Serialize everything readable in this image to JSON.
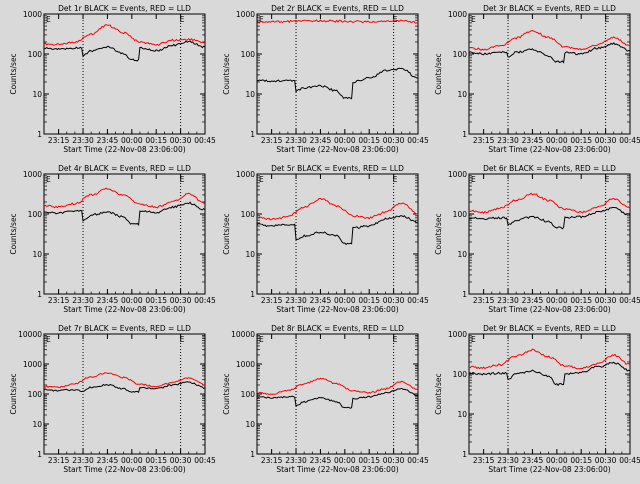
{
  "chart_data": [
    {
      "type": "line",
      "title": "Det 1r BLACK = Events, RED = LLD",
      "xlabel": "Start Time (22-Nov-08 23:06:00)",
      "ylabel": "Counts/sec",
      "yscale": "log",
      "ylim": [
        1,
        1000
      ],
      "y_ticks": [
        "1",
        "10",
        "100",
        "1000"
      ],
      "x_ticks": [
        "23:15",
        "23:30",
        "23:45",
        "00:00",
        "00:15",
        "00:30",
        "00:45"
      ],
      "xlim": [
        "23:06",
        "00:45"
      ],
      "markers": {
        "dotted_lines": [
          "23:30",
          "00:30"
        ],
        "E_labels": [
          "23:06",
          "00:30"
        ]
      },
      "series": [
        {
          "color": "#ff0000",
          "x": [
            "23:06",
            "23:15",
            "23:25",
            "23:35",
            "23:45",
            "23:55",
            "00:05",
            "00:15",
            "00:25",
            "00:35",
            "00:45"
          ],
          "values": [
            180,
            170,
            200,
            320,
            520,
            340,
            200,
            170,
            220,
            230,
            190
          ]
        },
        {
          "color": "#000000",
          "x": [
            "23:06",
            "23:15",
            "23:25",
            "23:30",
            "23:35",
            "23:45",
            "23:55",
            "00:00",
            "00:05",
            "00:15",
            "00:25",
            "00:35",
            "00:45"
          ],
          "values": [
            140,
            130,
            140,
            90,
            120,
            150,
            100,
            70,
            140,
            120,
            165,
            200,
            150
          ]
        }
      ]
    },
    {
      "type": "line",
      "title": "Det 2r BLACK = Events, RED = LLD",
      "xlabel": "Start Time (22-Nov-08 23:06:00)",
      "ylabel": "Counts/sec",
      "yscale": "log",
      "ylim": [
        1,
        1000
      ],
      "y_ticks": [
        "1",
        "10",
        "100",
        "1000"
      ],
      "x_ticks": [
        "23:15",
        "23:30",
        "23:45",
        "00:00",
        "00:15",
        "00:30",
        "00:45"
      ],
      "xlim": [
        "23:06",
        "00:45"
      ],
      "markers": {
        "dotted_lines": [
          "23:30",
          "00:30"
        ],
        "E_labels": [
          "23:06",
          "00:30"
        ]
      },
      "series": [
        {
          "color": "#ff0000",
          "x": [
            "23:06",
            "23:15",
            "23:25",
            "23:35",
            "23:45",
            "23:55",
            "00:05",
            "00:15",
            "00:25",
            "00:35",
            "00:45"
          ],
          "values": [
            650,
            640,
            650,
            660,
            680,
            660,
            650,
            640,
            660,
            670,
            620
          ]
        },
        {
          "color": "#000000",
          "x": [
            "23:06",
            "23:15",
            "23:25",
            "23:30",
            "23:35",
            "23:45",
            "23:55",
            "00:00",
            "00:05",
            "00:15",
            "00:25",
            "00:35",
            "00:45"
          ],
          "values": [
            22,
            21,
            22,
            12,
            14,
            16,
            12,
            8,
            20,
            25,
            38,
            42,
            25
          ]
        }
      ]
    },
    {
      "type": "line",
      "title": "Det 3r BLACK = Events, RED = LLD",
      "xlabel": "Start Time (22-Nov-08 23:06:00)",
      "ylabel": "Counts/sec",
      "yscale": "log",
      "ylim": [
        1,
        1000
      ],
      "y_ticks": [
        "1",
        "10",
        "100",
        "1000"
      ],
      "x_ticks": [
        "23:15",
        "23:30",
        "23:45",
        "00:00",
        "00:15",
        "00:30",
        "00:45"
      ],
      "xlim": [
        "23:06",
        "00:45"
      ],
      "markers": {
        "dotted_lines": [
          "23:30",
          "00:30"
        ],
        "E_labels": [
          "23:06",
          "00:30"
        ]
      },
      "series": [
        {
          "color": "#ff0000",
          "x": [
            "23:06",
            "23:15",
            "23:25",
            "23:35",
            "23:45",
            "23:55",
            "00:05",
            "00:15",
            "00:25",
            "00:35",
            "00:45"
          ],
          "values": [
            140,
            130,
            160,
            250,
            380,
            260,
            150,
            130,
            170,
            260,
            160
          ]
        },
        {
          "color": "#000000",
          "x": [
            "23:06",
            "23:15",
            "23:25",
            "23:30",
            "23:35",
            "23:45",
            "23:55",
            "00:00",
            "00:05",
            "00:15",
            "00:25",
            "00:35",
            "00:45"
          ],
          "values": [
            110,
            100,
            110,
            80,
            110,
            130,
            90,
            65,
            110,
            100,
            140,
            180,
            120
          ]
        }
      ]
    },
    {
      "type": "line",
      "title": "Det 4r BLACK = Events, RED = LLD",
      "xlabel": "Start Time (22-Nov-08 23:06:00)",
      "ylabel": "Counts/sec",
      "yscale": "log",
      "ylim": [
        1,
        1000
      ],
      "y_ticks": [
        "1",
        "10",
        "100",
        "1000"
      ],
      "x_ticks": [
        "23:15",
        "23:30",
        "23:45",
        "00:00",
        "00:15",
        "00:30",
        "00:45"
      ],
      "xlim": [
        "23:06",
        "00:45"
      ],
      "markers": {
        "dotted_lines": [
          "23:30",
          "00:30"
        ],
        "E_labels": [
          "23:06",
          "00:30"
        ]
      },
      "series": [
        {
          "color": "#ff0000",
          "x": [
            "23:06",
            "23:15",
            "23:25",
            "23:35",
            "23:45",
            "23:55",
            "00:05",
            "00:15",
            "00:25",
            "00:35",
            "00:45"
          ],
          "values": [
            160,
            150,
            180,
            300,
            420,
            290,
            170,
            150,
            200,
            320,
            180
          ]
        },
        {
          "color": "#000000",
          "x": [
            "23:06",
            "23:15",
            "23:25",
            "23:30",
            "23:35",
            "23:45",
            "23:55",
            "00:00",
            "00:05",
            "00:15",
            "00:25",
            "00:35",
            "00:45"
          ],
          "values": [
            115,
            105,
            120,
            70,
            95,
            110,
            85,
            55,
            120,
            110,
            150,
            190,
            130
          ]
        }
      ]
    },
    {
      "type": "line",
      "title": "Det 5r BLACK = Events, RED = LLD",
      "xlabel": "Start Time (22-Nov-08 23:06:00)",
      "ylabel": "Counts/sec",
      "yscale": "log",
      "ylim": [
        1,
        1000
      ],
      "y_ticks": [
        "1",
        "10",
        "100",
        "1000"
      ],
      "x_ticks": [
        "23:15",
        "23:30",
        "23:45",
        "00:00",
        "00:15",
        "00:30",
        "00:45"
      ],
      "xlim": [
        "23:06",
        "00:45"
      ],
      "markers": {
        "dotted_lines": [
          "23:30",
          "00:30"
        ],
        "E_labels": [
          "23:06",
          "00:30"
        ]
      },
      "series": [
        {
          "color": "#ff0000",
          "x": [
            "23:06",
            "23:15",
            "23:25",
            "23:35",
            "23:45",
            "23:55",
            "00:05",
            "00:15",
            "00:25",
            "00:35",
            "00:45"
          ],
          "values": [
            80,
            75,
            85,
            150,
            240,
            160,
            90,
            80,
            110,
            190,
            100
          ]
        },
        {
          "color": "#000000",
          "x": [
            "23:06",
            "23:15",
            "23:25",
            "23:30",
            "23:35",
            "23:45",
            "23:55",
            "00:00",
            "00:05",
            "00:15",
            "00:25",
            "00:35",
            "00:45"
          ],
          "values": [
            55,
            50,
            55,
            22,
            28,
            35,
            28,
            18,
            45,
            50,
            75,
            90,
            60
          ]
        }
      ]
    },
    {
      "type": "line",
      "title": "Det 6r BLACK = Events, RED = LLD",
      "xlabel": "Start Time (22-Nov-08 23:06:00)",
      "ylabel": "Counts/sec",
      "yscale": "log",
      "ylim": [
        1,
        1000
      ],
      "y_ticks": [
        "1",
        "10",
        "100",
        "1000"
      ],
      "x_ticks": [
        "23:15",
        "23:30",
        "23:45",
        "00:00",
        "00:15",
        "00:30",
        "00:45"
      ],
      "xlim": [
        "23:06",
        "00:45"
      ],
      "markers": {
        "dotted_lines": [
          "23:30",
          "00:30"
        ],
        "E_labels": [
          "23:06",
          "00:30"
        ]
      },
      "series": [
        {
          "color": "#ff0000",
          "x": [
            "23:06",
            "23:15",
            "23:25",
            "23:35",
            "23:45",
            "23:55",
            "00:05",
            "00:15",
            "00:25",
            "00:35",
            "00:45"
          ],
          "values": [
            120,
            110,
            140,
            220,
            320,
            220,
            130,
            110,
            150,
            240,
            140
          ]
        },
        {
          "color": "#000000",
          "x": [
            "23:06",
            "23:15",
            "23:25",
            "23:30",
            "23:35",
            "23:45",
            "23:55",
            "00:00",
            "00:05",
            "00:15",
            "00:25",
            "00:35",
            "00:45"
          ],
          "values": [
            80,
            75,
            80,
            55,
            70,
            85,
            65,
            45,
            80,
            85,
            110,
            140,
            95
          ]
        }
      ]
    },
    {
      "type": "line",
      "title": "Det 7r BLACK = Events, RED = LLD",
      "xlabel": "Start Time (22-Nov-08 23:06:00)",
      "ylabel": "Counts/sec",
      "yscale": "log",
      "ylim": [
        1,
        10000
      ],
      "y_ticks": [
        "1",
        "10",
        "100",
        "1000",
        "10000"
      ],
      "x_ticks": [
        "23:15",
        "23:30",
        "23:45",
        "00:00",
        "00:15",
        "00:30",
        "00:45"
      ],
      "xlim": [
        "23:06",
        "00:45"
      ],
      "markers": {
        "dotted_lines": [
          "23:30",
          "00:30"
        ],
        "E_labels": [
          "23:06",
          "00:30"
        ]
      },
      "series": [
        {
          "color": "#ff0000",
          "x": [
            "23:06",
            "23:15",
            "23:25",
            "23:35",
            "23:45",
            "23:55",
            "00:05",
            "00:15",
            "00:25",
            "00:35",
            "00:45"
          ],
          "values": [
            180,
            170,
            220,
            380,
            500,
            350,
            210,
            180,
            240,
            350,
            200
          ]
        },
        {
          "color": "#000000",
          "x": [
            "23:06",
            "23:15",
            "23:25",
            "23:30",
            "23:35",
            "23:45",
            "23:55",
            "00:00",
            "00:05",
            "00:15",
            "00:25",
            "00:35",
            "00:45"
          ],
          "values": [
            140,
            130,
            140,
            120,
            170,
            200,
            150,
            120,
            160,
            150,
            200,
            250,
            160
          ]
        }
      ]
    },
    {
      "type": "line",
      "title": "Det 8r BLACK = Events, RED = LLD",
      "xlabel": "Start Time (22-Nov-08 23:06:00)",
      "ylabel": "Counts/sec",
      "yscale": "log",
      "ylim": [
        1,
        10000
      ],
      "y_ticks": [
        "1",
        "10",
        "100",
        "1000",
        "10000"
      ],
      "x_ticks": [
        "23:15",
        "23:30",
        "23:45",
        "00:00",
        "00:15",
        "00:30",
        "00:45"
      ],
      "xlim": [
        "23:06",
        "00:45"
      ],
      "markers": {
        "dotted_lines": [
          "23:30",
          "00:30"
        ],
        "E_labels": [
          "23:06",
          "00:30"
        ]
      },
      "series": [
        {
          "color": "#ff0000",
          "x": [
            "23:06",
            "23:15",
            "23:25",
            "23:35",
            "23:45",
            "23:55",
            "00:05",
            "00:15",
            "00:25",
            "00:35",
            "00:45"
          ],
          "values": [
            110,
            100,
            130,
            220,
            330,
            220,
            130,
            110,
            150,
            260,
            140
          ]
        },
        {
          "color": "#000000",
          "x": [
            "23:06",
            "23:15",
            "23:25",
            "23:30",
            "23:35",
            "23:45",
            "23:55",
            "00:00",
            "00:05",
            "00:15",
            "00:25",
            "00:35",
            "00:45"
          ],
          "values": [
            80,
            75,
            80,
            40,
            55,
            75,
            55,
            35,
            70,
            80,
            110,
            150,
            90
          ]
        }
      ]
    },
    {
      "type": "line",
      "title": "Det 9r BLACK = Events, RED = LLD",
      "xlabel": "Start Time (22-Nov-08 23:06:00)",
      "ylabel": "Counts/sec",
      "yscale": "log",
      "ylim": [
        1,
        1000
      ],
      "y_ticks": [
        "1",
        "10",
        "100",
        "1000"
      ],
      "x_ticks": [
        "23:15",
        "23:30",
        "23:45",
        "00:00",
        "00:15",
        "00:30",
        "00:45"
      ],
      "xlim": [
        "23:06",
        "00:45"
      ],
      "markers": {
        "dotted_lines": [
          "23:30",
          "00:30"
        ],
        "E_labels": [
          "23:06",
          "00:30"
        ]
      },
      "series": [
        {
          "color": "#ff0000",
          "x": [
            "23:06",
            "23:15",
            "23:25",
            "23:35",
            "23:45",
            "23:55",
            "00:05",
            "00:15",
            "00:25",
            "00:35",
            "00:45"
          ],
          "values": [
            150,
            140,
            170,
            280,
            400,
            270,
            160,
            140,
            180,
            300,
            170
          ]
        },
        {
          "color": "#000000",
          "x": [
            "23:06",
            "23:15",
            "23:25",
            "23:30",
            "23:35",
            "23:45",
            "23:55",
            "00:00",
            "00:05",
            "00:15",
            "00:25",
            "00:35",
            "00:45"
          ],
          "values": [
            105,
            100,
            105,
            75,
            100,
            120,
            90,
            55,
            100,
            110,
            150,
            190,
            120
          ]
        }
      ]
    }
  ]
}
